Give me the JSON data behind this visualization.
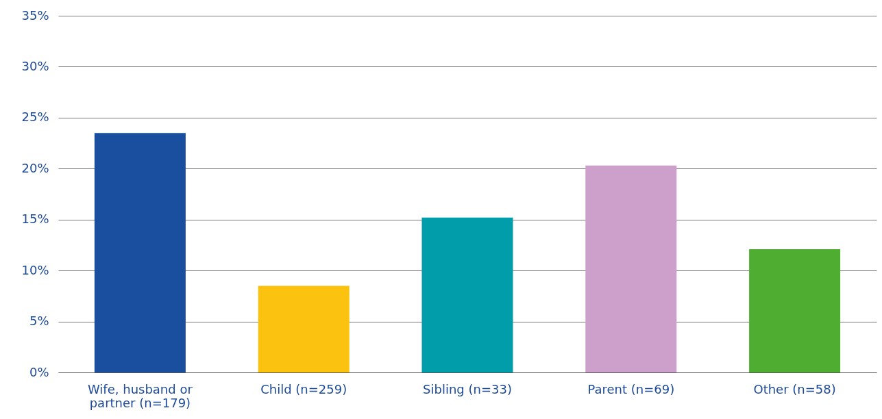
{
  "chart_data": {
    "type": "bar",
    "categories": [
      "Wife, husband or partner (n=179)",
      "Child (n=259)",
      "Sibling (n=33)",
      "Parent (n=69)",
      "Other (n=58)"
    ],
    "values": [
      23.5,
      8.5,
      15.2,
      20.3,
      12.1
    ],
    "colors": [
      "#1a4f9f",
      "#fbc30f",
      "#019daa",
      "#cda0cb",
      "#4fae32"
    ],
    "ylim": [
      0,
      35
    ],
    "yticks": [
      {
        "value": 0,
        "label": "0%"
      },
      {
        "value": 5,
        "label": "5%"
      },
      {
        "value": 10,
        "label": "10%"
      },
      {
        "value": 15,
        "label": "15%"
      },
      {
        "value": 20,
        "label": "20%"
      },
      {
        "value": 25,
        "label": "25%"
      },
      {
        "value": 30,
        "label": "30%"
      },
      {
        "value": 35,
        "label": "35%"
      }
    ],
    "grid": "y"
  }
}
